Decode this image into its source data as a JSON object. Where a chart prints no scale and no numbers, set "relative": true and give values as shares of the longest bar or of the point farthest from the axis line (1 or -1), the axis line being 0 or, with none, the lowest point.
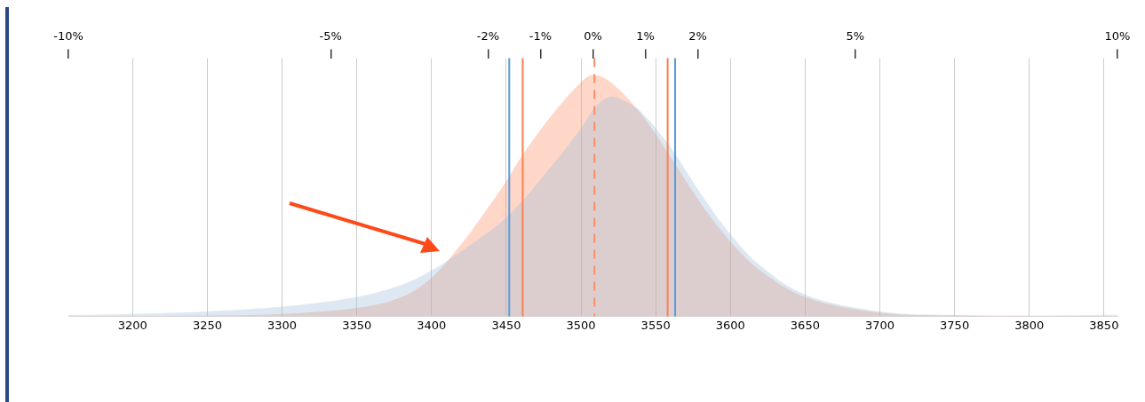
{
  "chart_data": {
    "type": "area",
    "relative": true,
    "xlim": [
      3157,
      3859
    ],
    "xticks": [
      3200,
      3250,
      3300,
      3350,
      3400,
      3450,
      3500,
      3550,
      3600,
      3650,
      3700,
      3750,
      3800,
      3850
    ],
    "x2lim": [
      -10,
      10
    ],
    "x2ticks": [
      {
        "value": -10,
        "label": "-10%"
      },
      {
        "value": -5,
        "label": "-5%"
      },
      {
        "value": -2,
        "label": "-2%"
      },
      {
        "value": -1,
        "label": "-1%"
      },
      {
        "value": 0,
        "label": "0%"
      },
      {
        "value": 1,
        "label": "1%"
      },
      {
        "value": 2,
        "label": "2%"
      },
      {
        "value": 5,
        "label": "5%"
      },
      {
        "value": 10,
        "label": "10%"
      }
    ],
    "grid": "x",
    "legend": false,
    "series": [
      {
        "color": "#9ebcda",
        "x": [
          3157,
          3200,
          3250,
          3300,
          3350,
          3380,
          3400,
          3420,
          3450,
          3480,
          3500,
          3510,
          3520,
          3530,
          3540,
          3560,
          3580,
          3600,
          3620,
          3650,
          3700,
          3750,
          3800,
          3859
        ],
        "values": [
          0.005,
          0.01,
          0.02,
          0.04,
          0.08,
          0.13,
          0.19,
          0.27,
          0.41,
          0.62,
          0.78,
          0.87,
          0.91,
          0.89,
          0.85,
          0.7,
          0.51,
          0.34,
          0.21,
          0.09,
          0.02,
          0.005,
          0.003,
          0.006
        ]
      },
      {
        "color": "#fc8d62",
        "x": [
          3157,
          3250,
          3300,
          3350,
          3380,
          3400,
          3420,
          3440,
          3450,
          3460,
          3480,
          3500,
          3508,
          3520,
          3540,
          3560,
          3580,
          3600,
          3620,
          3650,
          3700,
          3750,
          3859
        ],
        "values": [
          0,
          0.003,
          0.01,
          0.035,
          0.08,
          0.16,
          0.3,
          0.47,
          0.56,
          0.66,
          0.83,
          0.97,
          1,
          0.97,
          0.84,
          0.66,
          0.47,
          0.31,
          0.19,
          0.08,
          0.015,
          0.003,
          0
        ]
      }
    ],
    "ref_lines": [
      {
        "axis": "x",
        "value": 3452,
        "color": "#5b9bd5"
      },
      {
        "axis": "x",
        "value": 3461,
        "color": "#fc7f4f"
      },
      {
        "axis": "x",
        "value": 3509,
        "color": "#fc8d62",
        "line_style": "dashed"
      },
      {
        "axis": "x",
        "value": 3558,
        "color": "#fc7f4f"
      },
      {
        "axis": "x",
        "value": 3563,
        "color": "#5b9bd5"
      }
    ]
  }
}
